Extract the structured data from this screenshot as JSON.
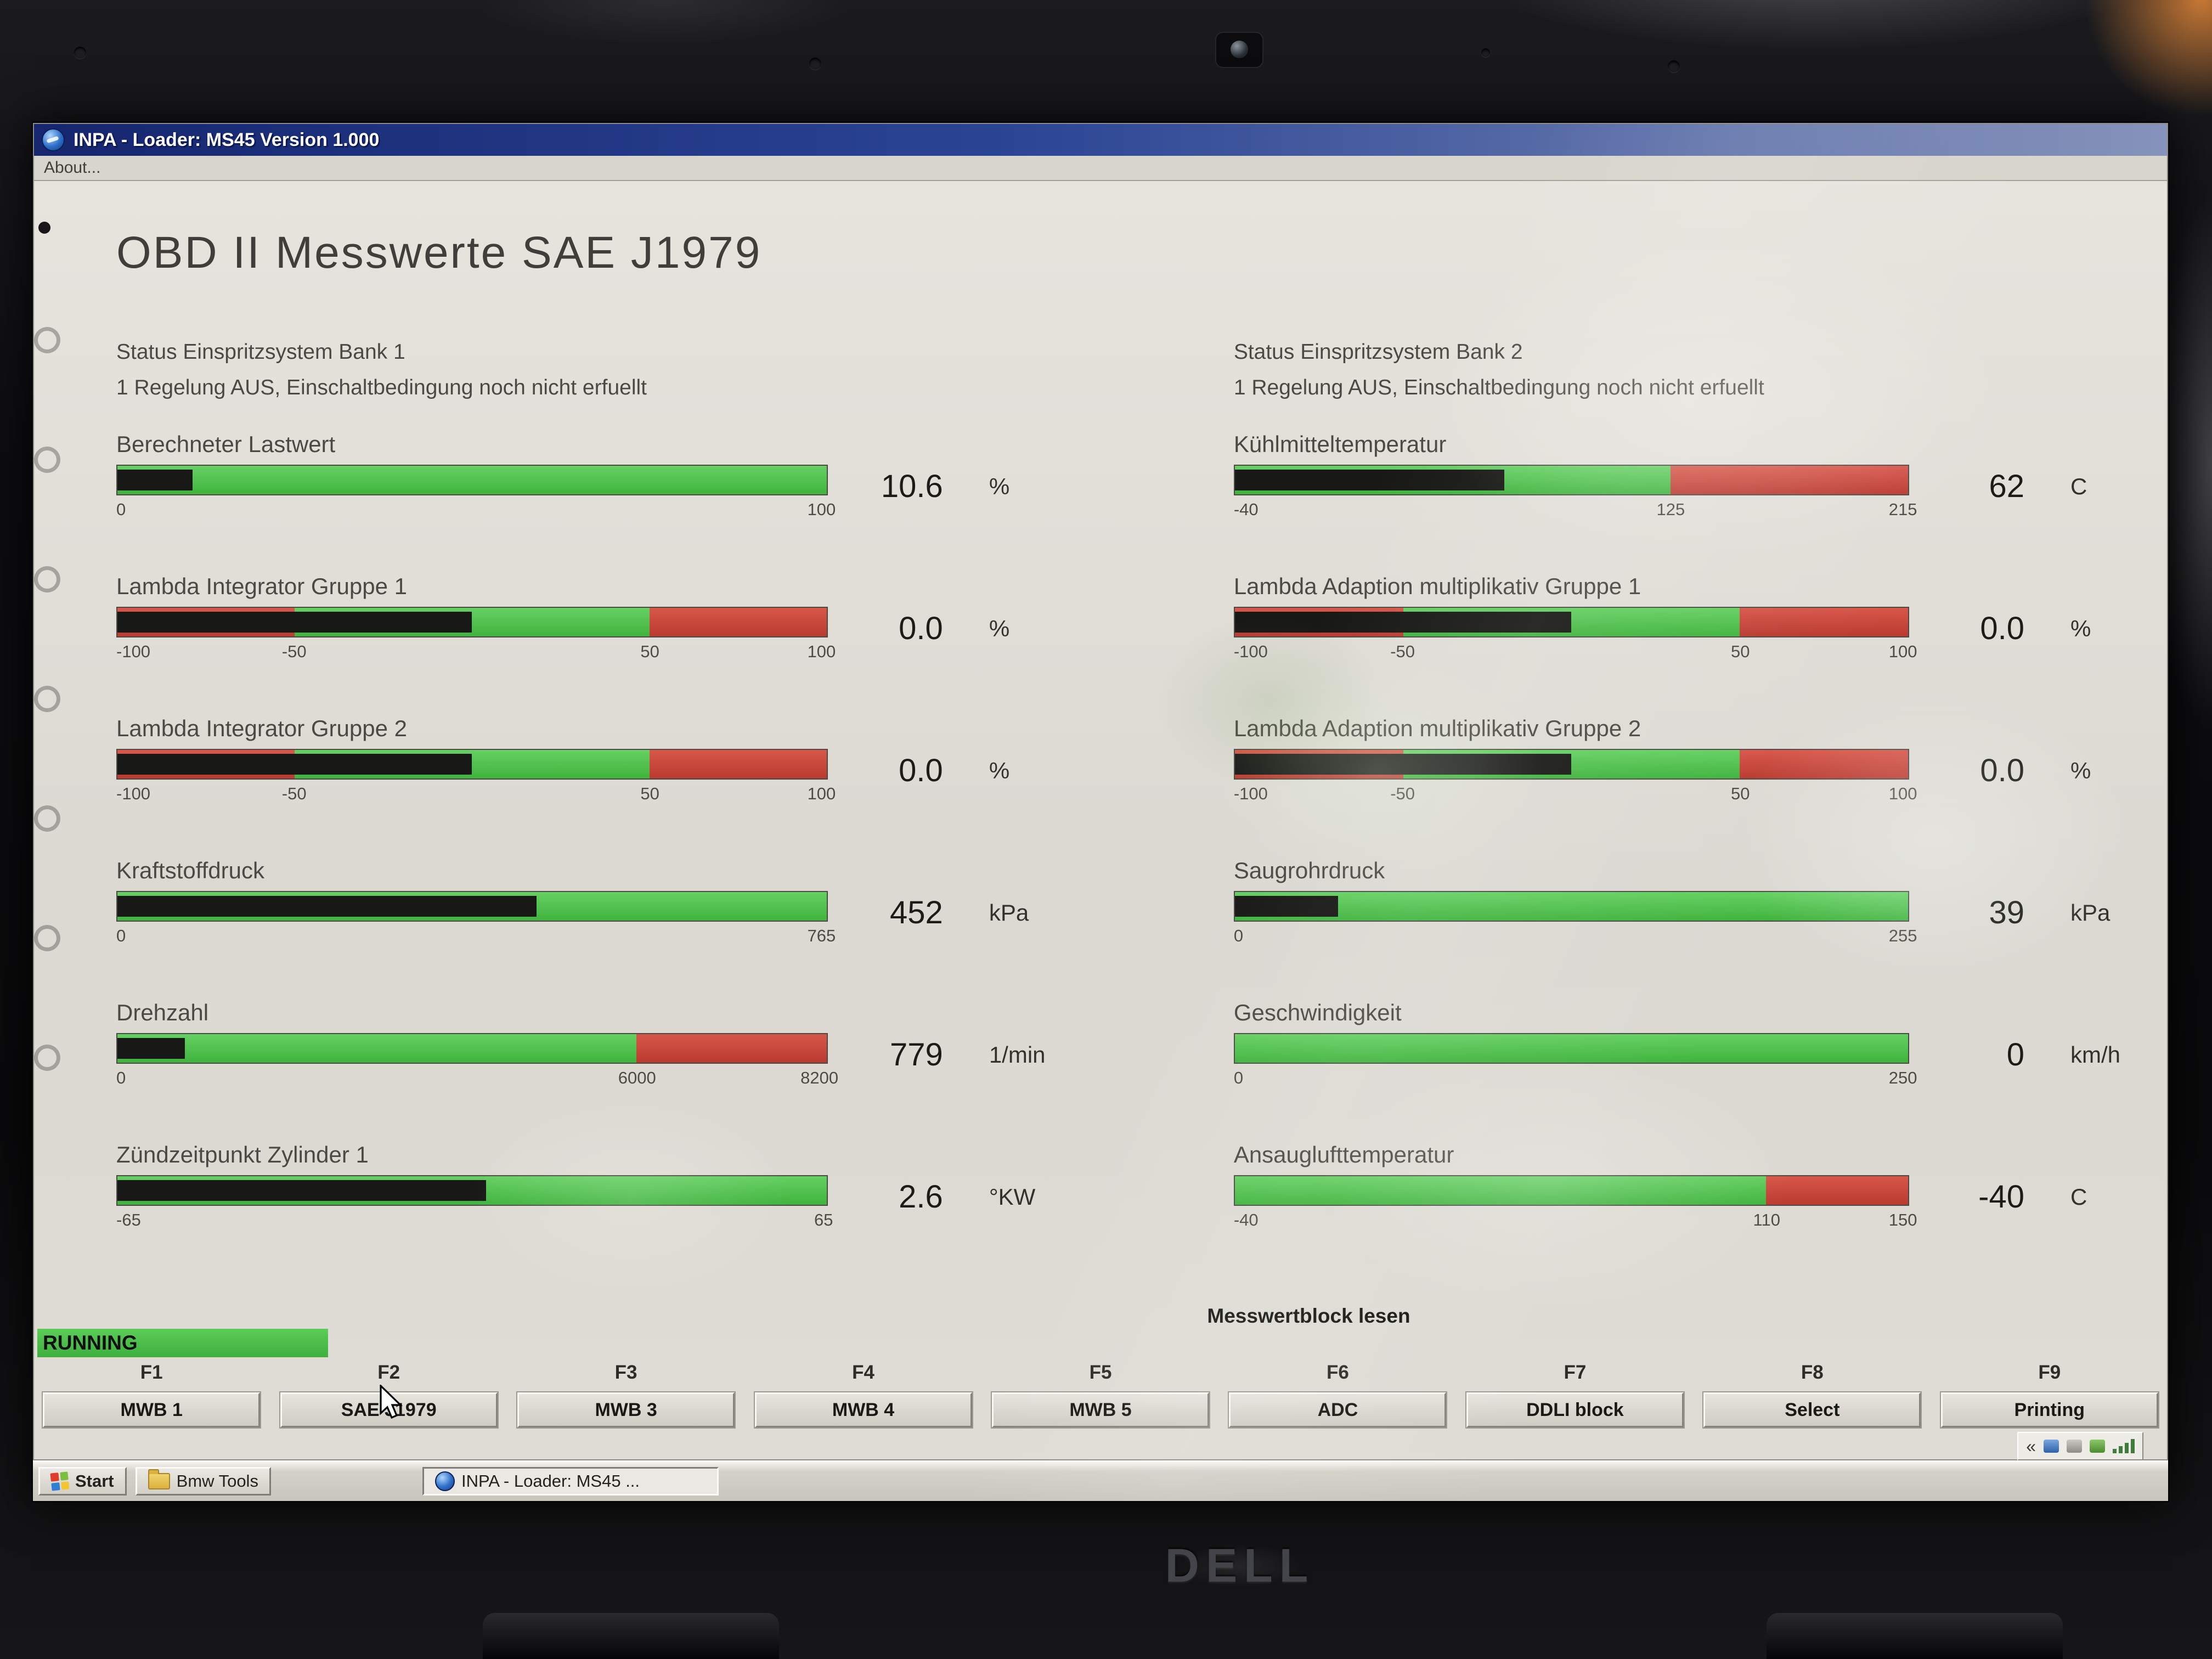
{
  "window": {
    "title": "INPA - Loader: MS45 Version 1.000",
    "menu_about": "About...",
    "heading": "OBD II Messwerte SAE J1979"
  },
  "left_column": {
    "status_line1": "Status Einspritzsystem Bank 1",
    "status_line2": "1 Regelung AUS, Einschaltbedingung noch nicht erfuellt",
    "gauges": [
      {
        "label": "Berechneter Lastwert",
        "value": "10.6",
        "unit": "%",
        "fill_pct": 10.6,
        "segments": [
          {
            "color": "green",
            "from": 0,
            "to": 100
          }
        ],
        "ticks": [
          {
            "text": "0",
            "pct": 0
          },
          {
            "text": "100",
            "pct": 100
          }
        ]
      },
      {
        "label": "Lambda Integrator Gruppe 1",
        "value": "0.0",
        "unit": "%",
        "fill_pct": 50,
        "segments": [
          {
            "color": "red",
            "from": 0,
            "to": 25
          },
          {
            "color": "green",
            "from": 25,
            "to": 75
          },
          {
            "color": "red",
            "from": 75,
            "to": 100
          }
        ],
        "ticks": [
          {
            "text": "-100",
            "pct": 0
          },
          {
            "text": "-50",
            "pct": 25
          },
          {
            "text": "50",
            "pct": 75
          },
          {
            "text": "100",
            "pct": 100
          }
        ]
      },
      {
        "label": "Lambda Integrator Gruppe 2",
        "value": "0.0",
        "unit": "%",
        "fill_pct": 50,
        "segments": [
          {
            "color": "red",
            "from": 0,
            "to": 25
          },
          {
            "color": "green",
            "from": 25,
            "to": 75
          },
          {
            "color": "red",
            "from": 75,
            "to": 100
          }
        ],
        "ticks": [
          {
            "text": "-100",
            "pct": 0
          },
          {
            "text": "-50",
            "pct": 25
          },
          {
            "text": "50",
            "pct": 75
          },
          {
            "text": "100",
            "pct": 100
          }
        ]
      },
      {
        "label": "Kraftstoffdruck",
        "value": "452",
        "unit": "kPa",
        "fill_pct": 59.1,
        "segments": [
          {
            "color": "green",
            "from": 0,
            "to": 100
          }
        ],
        "ticks": [
          {
            "text": "0",
            "pct": 0
          },
          {
            "text": "765",
            "pct": 100
          }
        ]
      },
      {
        "label": "Drehzahl",
        "value": "779",
        "unit": "1/min",
        "fill_pct": 9.5,
        "segments": [
          {
            "color": "green",
            "from": 0,
            "to": 73.2
          },
          {
            "color": "red",
            "from": 73.2,
            "to": 100
          }
        ],
        "ticks": [
          {
            "text": "0",
            "pct": 0
          },
          {
            "text": "6000",
            "pct": 73.2
          },
          {
            "text": "8200",
            "pct": 100
          }
        ]
      },
      {
        "label": "Zündzeitpunkt Zylinder 1",
        "value": "2.6",
        "unit": "°KW",
        "fill_pct": 52,
        "segments": [
          {
            "color": "green",
            "from": 0,
            "to": 100
          }
        ],
        "ticks": [
          {
            "text": "-65",
            "pct": 0
          },
          {
            "text": "65",
            "pct": 100
          }
        ]
      }
    ]
  },
  "right_column": {
    "status_line1": "Status Einspritzsystem Bank 2",
    "status_line2": "1 Regelung AUS, Einschaltbedingung noch nicht erfuellt",
    "gauges": [
      {
        "label": "Kühlmitteltemperatur",
        "value": "62",
        "unit": "C",
        "fill_pct": 40,
        "segments": [
          {
            "color": "green",
            "from": 0,
            "to": 64.7
          },
          {
            "color": "red",
            "from": 64.7,
            "to": 100
          }
        ],
        "ticks": [
          {
            "text": "-40",
            "pct": 0
          },
          {
            "text": "125",
            "pct": 64.7
          },
          {
            "text": "215",
            "pct": 100
          }
        ]
      },
      {
        "label": "Lambda Adaption multiplikativ Gruppe 1",
        "value": "0.0",
        "unit": "%",
        "fill_pct": 50,
        "segments": [
          {
            "color": "red",
            "from": 0,
            "to": 25
          },
          {
            "color": "green",
            "from": 25,
            "to": 75
          },
          {
            "color": "red",
            "from": 75,
            "to": 100
          }
        ],
        "ticks": [
          {
            "text": "-100",
            "pct": 0
          },
          {
            "text": "-50",
            "pct": 25
          },
          {
            "text": "50",
            "pct": 75
          },
          {
            "text": "100",
            "pct": 100
          }
        ]
      },
      {
        "label": "Lambda Adaption multiplikativ Gruppe 2",
        "value": "0.0",
        "unit": "%",
        "fill_pct": 50,
        "segments": [
          {
            "color": "red",
            "from": 0,
            "to": 25
          },
          {
            "color": "green",
            "from": 25,
            "to": 75
          },
          {
            "color": "red",
            "from": 75,
            "to": 100
          }
        ],
        "ticks": [
          {
            "text": "-100",
            "pct": 0
          },
          {
            "text": "-50",
            "pct": 25
          },
          {
            "text": "50",
            "pct": 75
          },
          {
            "text": "100",
            "pct": 100
          }
        ]
      },
      {
        "label": "Saugrohrdruck",
        "value": "39",
        "unit": "kPa",
        "fill_pct": 15.3,
        "segments": [
          {
            "color": "green",
            "from": 0,
            "to": 100
          }
        ],
        "ticks": [
          {
            "text": "0",
            "pct": 0
          },
          {
            "text": "255",
            "pct": 100
          }
        ]
      },
      {
        "label": "Geschwindigkeit",
        "value": "0",
        "unit": "km/h",
        "fill_pct": 0,
        "segments": [
          {
            "color": "green",
            "from": 0,
            "to": 100
          }
        ],
        "ticks": [
          {
            "text": "0",
            "pct": 0
          },
          {
            "text": "250",
            "pct": 100
          }
        ]
      },
      {
        "label": "Ansauglufttemperatur",
        "value": "-40",
        "unit": "C",
        "fill_pct": 0,
        "segments": [
          {
            "color": "green",
            "from": 0,
            "to": 78.9
          },
          {
            "color": "red",
            "from": 78.9,
            "to": 100
          }
        ],
        "ticks": [
          {
            "text": "-40",
            "pct": 0
          },
          {
            "text": "110",
            "pct": 78.9
          },
          {
            "text": "150",
            "pct": 100
          }
        ]
      }
    ]
  },
  "footer": {
    "running_label": "RUNNING",
    "block_label": "Messwertblock lesen",
    "fkeys": [
      {
        "key": "F1",
        "label": "MWB 1"
      },
      {
        "key": "F2",
        "label": "SAE J1979"
      },
      {
        "key": "F3",
        "label": "MWB 3"
      },
      {
        "key": "F4",
        "label": "MWB 4"
      },
      {
        "key": "F5",
        "label": "MWB 5"
      },
      {
        "key": "F6",
        "label": "ADC"
      },
      {
        "key": "F7",
        "label": "DDLI block"
      },
      {
        "key": "F8",
        "label": "Select"
      },
      {
        "key": "F9",
        "label": "Printing"
      }
    ]
  },
  "taskbar": {
    "start": "Start",
    "quicklaunch": "Bmw Tools",
    "task": "INPA - Loader: MS45 ...",
    "tray_chevron": "«"
  },
  "bezel": {
    "brand": "DELL"
  },
  "colors": {
    "green": "#4fc24f",
    "red": "#c8443a",
    "bar_black": "#181816",
    "title_blue": "#16266f"
  }
}
